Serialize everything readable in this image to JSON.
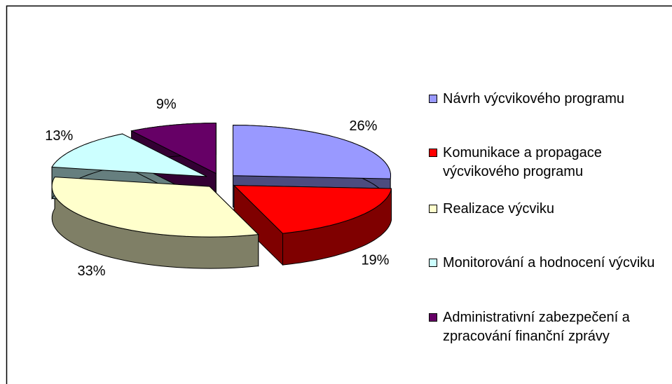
{
  "chart_data": {
    "type": "pie",
    "categories": [
      "Návrh výcvikového programu",
      "Komunikace a propagace výcvikového programu",
      "Realizace výcviku",
      "Monitorování a hodnocení výcviku",
      "Administrativní zabezpečení a zpracování finanční zprávy"
    ],
    "values": [
      26,
      19,
      33,
      13,
      9
    ],
    "value_labels": [
      "26%",
      "19%",
      "33%",
      "13%",
      "9%"
    ],
    "colors": [
      "#9999ff",
      "#ff0000",
      "#ffffcc",
      "#ccffff",
      "#660066"
    ],
    "legend": "right"
  }
}
